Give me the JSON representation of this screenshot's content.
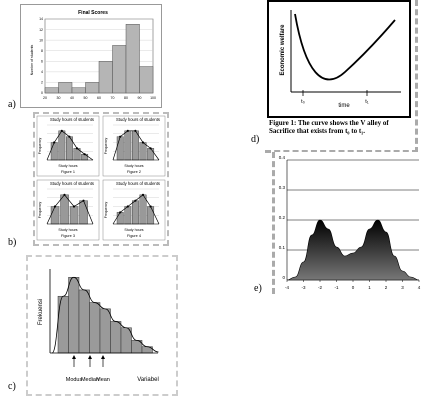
{
  "labels": {
    "a": "a)",
    "b": "b)",
    "c": "c)",
    "d": "d)",
    "e": "e)"
  },
  "panel_a": {
    "title": "Final Scores",
    "ylabel": "Number of students",
    "xticks": [
      "20",
      "30",
      "40",
      "50",
      "60",
      "70",
      "80",
      "90",
      "100"
    ],
    "yticks": [
      "0",
      "2",
      "4",
      "6",
      "8",
      "10",
      "12",
      "14"
    ]
  },
  "panel_b": {
    "charts": [
      {
        "title": "Study hours of students",
        "caption": "Figure 1",
        "xlabel": "Study hours"
      },
      {
        "title": "Study hours of students",
        "caption": "Figure 2",
        "xlabel": "Study hours"
      },
      {
        "title": "Study hours of students",
        "caption": "Figure 3",
        "xlabel": "Study hours"
      },
      {
        "title": "Study hours of students",
        "caption": "Figure 4",
        "xlabel": "Study hours"
      }
    ],
    "ylabel": "Frequency"
  },
  "panel_c": {
    "ylabel": "Frekuensi",
    "xlabel": "Variabel",
    "markers": [
      "Modus",
      "Median",
      "Mean"
    ]
  },
  "panel_d": {
    "ylabel": "Economic welfare",
    "xlabel": "time",
    "t0": "t₀",
    "t1": "t₁",
    "caption": "Figure 1:  The curve shows the V alley of Sacrifice that exists from t₀ to t₁."
  },
  "panel_e": {
    "yticks": [
      "0",
      "0.1",
      "0.2",
      "0.3",
      "0.4"
    ],
    "xticks": [
      "-4",
      "-3",
      "-2",
      "-1",
      "0",
      "1",
      "2",
      "3",
      "4"
    ]
  },
  "chart_data": [
    {
      "type": "bar",
      "title": "Final Scores",
      "ylabel": "Number of students",
      "categories": [
        "20-30",
        "30-40",
        "40-50",
        "50-60",
        "60-70",
        "70-80",
        "80-90",
        "90-100"
      ],
      "values": [
        1,
        2,
        1,
        2,
        6,
        9,
        13,
        5
      ],
      "ylim": [
        0,
        14
      ]
    },
    {
      "type": "bar",
      "title": "Study hours of students",
      "caption": "Figure 1",
      "values": [
        3,
        5,
        4,
        2,
        1
      ]
    },
    {
      "type": "bar",
      "title": "Study hours of students",
      "caption": "Figure 2",
      "values": [
        4,
        5,
        5,
        3,
        2
      ]
    },
    {
      "type": "bar",
      "title": "Study hours of students",
      "caption": "Figure 3",
      "values": [
        3,
        5,
        3,
        4
      ]
    },
    {
      "type": "bar",
      "title": "Study hours of students",
      "caption": "Figure 4",
      "values": [
        2,
        3,
        4,
        5,
        3
      ]
    },
    {
      "type": "bar",
      "ylabel": "Frekuensi",
      "xlabel": "Variabel",
      "values": [
        9,
        12,
        10,
        8,
        7,
        5,
        4,
        2,
        1
      ]
    },
    {
      "type": "area",
      "xlim": [
        -4,
        4
      ],
      "ylim": [
        0,
        0.4
      ],
      "x": [
        -4,
        -3.5,
        -3,
        -2.5,
        -2,
        -1.5,
        -1,
        -0.5,
        0,
        0.5,
        1,
        1.5,
        2,
        2.5,
        3,
        3.5,
        4
      ],
      "y": [
        0,
        0.01,
        0.06,
        0.15,
        0.2,
        0.17,
        0.11,
        0.08,
        0.09,
        0.11,
        0.17,
        0.2,
        0.16,
        0.08,
        0.03,
        0.01,
        0
      ]
    }
  ]
}
